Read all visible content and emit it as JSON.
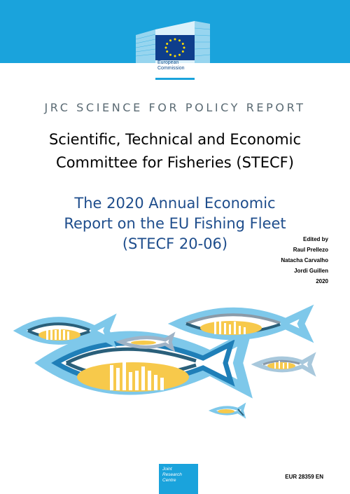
{
  "cover": {
    "institution": {
      "line1": "European",
      "line2": "Commission"
    },
    "series_label": "JRC SCIENCE FOR POLICY REPORT",
    "title": {
      "line1": "Scientific, Technical and Economic",
      "line2": "Committee for Fisheries (STECF)"
    },
    "subtitle": {
      "line1": "The 2020 Annual Economic",
      "line2": "Report on the EU Fishing Fleet",
      "line3": "(STECF 20-06)"
    },
    "editors": {
      "label": "Edited by",
      "names": [
        "Raul Prellezo",
        "Natacha Carvalho",
        "Jordi Guillen"
      ],
      "year": "2020"
    },
    "publisher": {
      "line1": "Joint",
      "line2": "Research",
      "line3": "Centre"
    },
    "report_number": "EUR 28359 EN"
  },
  "colors": {
    "band": "#1aa3dc",
    "navy": "#1e4d8c",
    "fish_dark": "#2a5f7a",
    "fish_light": "#7ec8ea",
    "fish_yellow": "#f7c94b",
    "fish_grey": "#8a9aa8"
  }
}
